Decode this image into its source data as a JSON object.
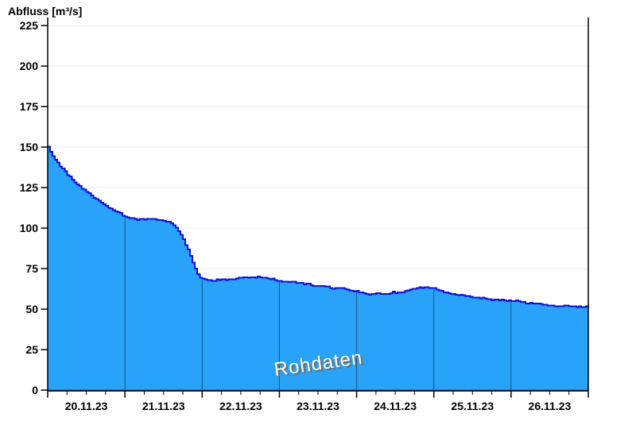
{
  "watermark": {
    "text": "Rohdaten"
  },
  "colors": {
    "area_fill": "#29A3FA",
    "line": "#0F0FDC",
    "grid": "#ECECEC",
    "axis": "#000000",
    "day_separator": "rgba(0,0,0,0.5)",
    "tick_label": "#000000",
    "watermark_fill": "#FFFFFF",
    "watermark_shadow": "#6E6E6E",
    "background": "#FFFFFF"
  },
  "chart_data": {
    "type": "area",
    "title": "Abfluss [m³/s]",
    "xlabel": "",
    "ylabel": "Abfluss [m³/s]",
    "ylim": [
      0,
      230
    ],
    "yticks": [
      0,
      25,
      50,
      75,
      100,
      125,
      150,
      175,
      200,
      225
    ],
    "x_hours_max": 168,
    "x_unit": "hours since 20.11.23 00:00",
    "major_tick_hours": 24,
    "minor_tick_hours": 6,
    "grid": "horizontal-light",
    "legend": "none",
    "annotation": "Rohdaten",
    "day_labels": [
      "20.11.23",
      "21.11.23",
      "22.11.23",
      "23.11.23",
      "24.11.23",
      "25.11.23",
      "26.11.23"
    ],
    "points": [
      [
        0,
        150
      ],
      [
        1,
        146
      ],
      [
        2,
        143
      ],
      [
        3,
        140.5
      ],
      [
        4,
        138
      ],
      [
        5,
        135.5
      ],
      [
        6,
        133
      ],
      [
        7.5,
        130
      ],
      [
        9,
        127
      ],
      [
        10,
        125.5
      ],
      [
        11,
        123.5
      ],
      [
        12.5,
        122
      ],
      [
        13.5,
        120
      ],
      [
        15,
        118
      ],
      [
        16,
        116
      ],
      [
        17.5,
        114.5
      ],
      [
        18.5,
        113
      ],
      [
        20,
        111.5
      ],
      [
        21,
        110.3
      ],
      [
        22.5,
        109
      ],
      [
        23.5,
        107.5
      ],
      [
        24,
        107
      ],
      [
        25,
        106.5
      ],
      [
        26.5,
        106
      ],
      [
        27.5,
        104.9
      ],
      [
        29,
        105.8
      ],
      [
        31,
        105.4
      ],
      [
        32,
        106
      ],
      [
        33.5,
        105.3
      ],
      [
        35,
        105
      ],
      [
        36.5,
        104.3
      ],
      [
        37.5,
        103.6
      ],
      [
        38.5,
        102.7
      ],
      [
        39.5,
        100.8
      ],
      [
        40.5,
        98.3
      ],
      [
        41.5,
        95
      ],
      [
        42.5,
        91
      ],
      [
        43.5,
        86.5
      ],
      [
        44.5,
        81.5
      ],
      [
        45.5,
        76.5
      ],
      [
        46.5,
        71.8
      ],
      [
        47.3,
        69.3
      ],
      [
        48,
        68.5
      ],
      [
        49.5,
        68.2
      ],
      [
        51,
        67.6
      ],
      [
        52.5,
        68.2
      ],
      [
        54.5,
        68.1
      ],
      [
        56.5,
        68.4
      ],
      [
        58.5,
        69
      ],
      [
        60.5,
        69.5
      ],
      [
        62.5,
        69.8
      ],
      [
        64,
        69.5
      ],
      [
        65.5,
        69.8
      ],
      [
        67,
        69.3
      ],
      [
        68.5,
        68.8
      ],
      [
        70,
        68.3
      ],
      [
        71,
        67.8
      ],
      [
        72,
        67.4
      ],
      [
        73.5,
        67.1
      ],
      [
        75,
        66.6
      ],
      [
        76.5,
        66.9
      ],
      [
        78,
        66.1
      ],
      [
        79.5,
        65.7
      ],
      [
        81,
        65.3
      ],
      [
        82.5,
        64.4
      ],
      [
        84,
        64.7
      ],
      [
        85.5,
        64.2
      ],
      [
        87,
        63.8
      ],
      [
        88,
        62.9
      ],
      [
        89,
        63.1
      ],
      [
        90,
        63.3
      ],
      [
        91.5,
        62.6
      ],
      [
        93,
        62
      ],
      [
        94.5,
        61.4
      ],
      [
        96,
        60.8
      ],
      [
        97.5,
        60
      ],
      [
        99,
        59.5
      ],
      [
        100,
        59.2
      ],
      [
        101.5,
        59.6
      ],
      [
        103,
        59.4
      ],
      [
        105,
        59.5
      ],
      [
        106.5,
        59.8
      ],
      [
        107.2,
        60.5
      ],
      [
        108,
        60
      ],
      [
        109.5,
        60.3
      ],
      [
        111,
        61.3
      ],
      [
        112,
        62.1
      ],
      [
        113.5,
        62
      ],
      [
        114.5,
        63.1
      ],
      [
        116,
        63.4
      ],
      [
        117.5,
        63.3
      ],
      [
        119,
        63.1
      ],
      [
        120,
        62.8
      ],
      [
        121,
        62.2
      ],
      [
        122,
        61.3
      ],
      [
        123,
        60.5
      ],
      [
        124.5,
        59.7
      ],
      [
        126,
        59.2
      ],
      [
        127.5,
        58.7
      ],
      [
        129,
        58.3
      ],
      [
        130.5,
        57.9
      ],
      [
        132,
        57.4
      ],
      [
        133.5,
        57.1
      ],
      [
        134.5,
        56.6
      ],
      [
        135.5,
        56.8
      ],
      [
        137,
        56.3
      ],
      [
        138,
        55.9
      ],
      [
        139.5,
        55.7
      ],
      [
        141,
        55.5
      ],
      [
        142.5,
        55.3
      ],
      [
        144,
        55.1
      ],
      [
        146,
        54.8
      ],
      [
        147.5,
        54.3
      ],
      [
        148.5,
        53.9
      ],
      [
        150.5,
        53.6
      ],
      [
        152.5,
        53.3
      ],
      [
        154,
        52.9
      ],
      [
        155.5,
        52.3
      ],
      [
        157.5,
        52
      ],
      [
        159.5,
        51.9
      ],
      [
        160.5,
        52.2
      ],
      [
        161.5,
        51.8
      ],
      [
        163.5,
        51.6
      ],
      [
        165.5,
        51.4
      ],
      [
        168,
        51.3
      ]
    ]
  }
}
